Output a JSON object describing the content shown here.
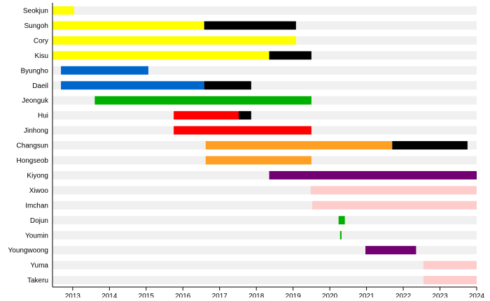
{
  "chart_data": {
    "type": "bar",
    "subtype": "timeline",
    "title": "",
    "xlabel": "",
    "ylabel": "",
    "xlim": [
      2012.45,
      2024
    ],
    "x_ticks": [
      "2013",
      "2014",
      "2015",
      "2016",
      "2017",
      "2018",
      "2019",
      "2020",
      "2021",
      "2022",
      "2023",
      "2024"
    ],
    "grid": false,
    "row_background_color": "#f0f0f0",
    "rows": [
      {
        "name": "Seokjun",
        "segments": [
          {
            "start": 2012.45,
            "end": 2013.04,
            "color": "#ffff00"
          }
        ]
      },
      {
        "name": "Sungoh",
        "segments": [
          {
            "start": 2012.45,
            "end": 2016.58,
            "color": "#ffff00"
          },
          {
            "start": 2016.58,
            "end": 2019.08,
            "color": "#000000"
          }
        ]
      },
      {
        "name": "Cory",
        "segments": [
          {
            "start": 2012.45,
            "end": 2019.08,
            "color": "#ffff00"
          }
        ]
      },
      {
        "name": "Kisu",
        "segments": [
          {
            "start": 2012.45,
            "end": 2018.35,
            "color": "#ffff00"
          },
          {
            "start": 2018.35,
            "end": 2019.5,
            "color": "#000000"
          }
        ]
      },
      {
        "name": "Byungho",
        "segments": [
          {
            "start": 2012.68,
            "end": 2015.06,
            "color": "#0066cc"
          }
        ]
      },
      {
        "name": "Daeil",
        "segments": [
          {
            "start": 2012.68,
            "end": 2016.58,
            "color": "#0066cc"
          },
          {
            "start": 2016.58,
            "end": 2017.86,
            "color": "#000000"
          }
        ]
      },
      {
        "name": "Jeonguk",
        "segments": [
          {
            "start": 2013.6,
            "end": 2019.5,
            "color": "#00b000"
          }
        ]
      },
      {
        "name": "Hui",
        "segments": [
          {
            "start": 2015.75,
            "end": 2017.52,
            "color": "#ff0000"
          },
          {
            "start": 2017.52,
            "end": 2017.86,
            "color": "#000000"
          }
        ]
      },
      {
        "name": "Jinhong",
        "segments": [
          {
            "start": 2015.75,
            "end": 2019.5,
            "color": "#ff0000"
          }
        ]
      },
      {
        "name": "Changsun",
        "segments": [
          {
            "start": 2016.62,
            "end": 2021.7,
            "color": "#ffa024"
          },
          {
            "start": 2021.7,
            "end": 2023.75,
            "color": "#000000"
          }
        ]
      },
      {
        "name": "Hongseob",
        "segments": [
          {
            "start": 2016.62,
            "end": 2019.5,
            "color": "#ffa024"
          }
        ]
      },
      {
        "name": "Kiyong",
        "segments": [
          {
            "start": 2018.35,
            "end": 2024,
            "color": "#730073"
          }
        ]
      },
      {
        "name": "Xiwoo",
        "segments": [
          {
            "start": 2019.48,
            "end": 2024,
            "color": "#ffcccc"
          }
        ]
      },
      {
        "name": "Imchan",
        "segments": [
          {
            "start": 2019.52,
            "end": 2024,
            "color": "#ffcccc"
          }
        ]
      },
      {
        "name": "Dojun",
        "segments": [
          {
            "start": 2020.24,
            "end": 2020.41,
            "color": "#00b000"
          }
        ]
      },
      {
        "name": "Youmin",
        "segments": [
          {
            "start": 2020.28,
            "end": 2020.32,
            "color": "#00b000"
          }
        ]
      },
      {
        "name": "Youngwoong",
        "segments": [
          {
            "start": 2020.97,
            "end": 2022.35,
            "color": "#730073"
          }
        ]
      },
      {
        "name": "Yuma",
        "segments": [
          {
            "start": 2022.55,
            "end": 2024,
            "color": "#ffcccc"
          }
        ]
      },
      {
        "name": "Takeru",
        "segments": [
          {
            "start": 2022.55,
            "end": 2024,
            "color": "#ffcccc"
          }
        ]
      }
    ]
  }
}
